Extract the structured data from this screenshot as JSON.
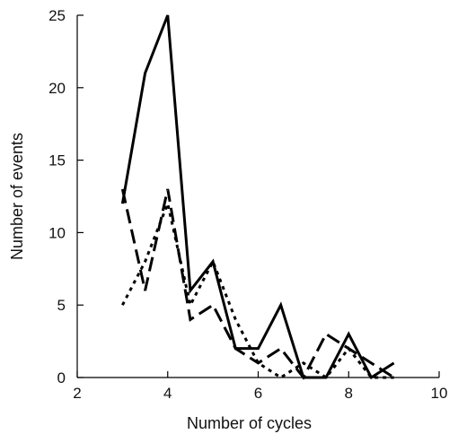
{
  "chart_data": {
    "type": "line",
    "title": "",
    "xlabel": "Number of cycles",
    "ylabel": "Number of events",
    "xlim": [
      2,
      10
    ],
    "ylim": [
      0,
      25
    ],
    "xticks": [
      2,
      4,
      6,
      8,
      10
    ],
    "yticks": [
      0,
      5,
      10,
      15,
      20,
      25
    ],
    "grid": false,
    "series": [
      {
        "style": "solid",
        "x": [
          3,
          3.5,
          4,
          4.5,
          5,
          5.5,
          6,
          6.5,
          7,
          7.5,
          8,
          8.5,
          9
        ],
        "y": [
          12,
          21,
          25,
          6,
          8,
          2,
          2,
          5,
          0,
          0,
          3,
          0,
          1
        ]
      },
      {
        "style": "dashed",
        "x": [
          3,
          3.5,
          4,
          4.5,
          5,
          5.5,
          6,
          6.5,
          7,
          7.5,
          8,
          8.5,
          9
        ],
        "y": [
          13,
          6,
          13,
          4,
          5,
          2,
          1,
          2,
          0,
          3,
          2,
          1,
          0
        ]
      },
      {
        "style": "dotted",
        "x": [
          3,
          3.5,
          4,
          4.5,
          5,
          5.5,
          6,
          6.5,
          7,
          7.5,
          8,
          8.5,
          9
        ],
        "y": [
          5,
          8,
          12,
          5,
          8,
          4,
          1,
          0,
          1,
          0,
          2,
          0,
          0
        ]
      }
    ]
  }
}
